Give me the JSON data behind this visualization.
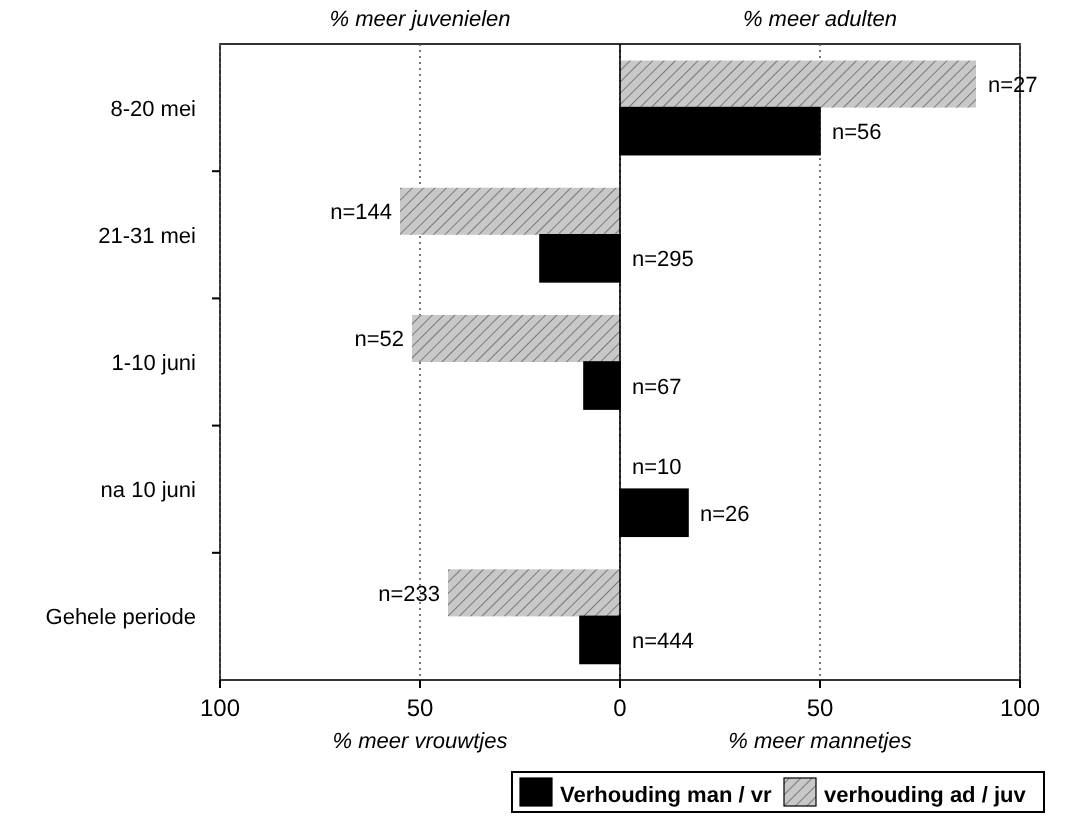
{
  "chart_data": {
    "type": "bar",
    "orientation": "horizontal",
    "categories": [
      "8-20 mei",
      "21-31 mei",
      "1-10 juni",
      "na 10 juni",
      "Gehele periode"
    ],
    "series": [
      {
        "name": "verhouding ad / juv",
        "color": "#c8c8c8",
        "values": [
          89,
          -55,
          -52,
          0,
          -43
        ]
      },
      {
        "name": "Verhouding man / vr",
        "color": "#000000",
        "values": [
          50,
          -20,
          -9,
          17,
          -10
        ]
      }
    ],
    "xlim": [
      -100,
      100
    ],
    "xticks": [
      {
        "value": -100,
        "label": "100"
      },
      {
        "value": -50,
        "label": "50"
      },
      0,
      50,
      100
    ],
    "grid": "x",
    "legend": "bottom",
    "annotations": [
      "% meer juvenielen",
      "% meer adulten",
      "% meer vrouwtjes",
      "% meer mannetjes",
      {
        "text": "n=27",
        "x": 89,
        "y": "8-20 mei"
      },
      {
        "text": "n=56",
        "x": 50,
        "y": "8-20 mei"
      },
      {
        "text": "n=144",
        "x": -55,
        "y": "21-31 mei"
      },
      {
        "text": "n=295",
        "x": 0,
        "y": "21-31 mei"
      },
      {
        "text": "n=52",
        "x": -52,
        "y": "1-10 juni"
      },
      {
        "text": "n=67",
        "x": 0,
        "y": "1-10 juni"
      },
      {
        "text": "n=10",
        "x": 0,
        "y": "na 10 juni"
      },
      {
        "text": "n=26",
        "x": 17,
        "y": "na 10 juni"
      },
      {
        "text": "n=233",
        "x": -43,
        "y": "Gehele periode"
      },
      {
        "text": "n=444",
        "x": 0,
        "y": "Gehele periode"
      }
    ]
  }
}
